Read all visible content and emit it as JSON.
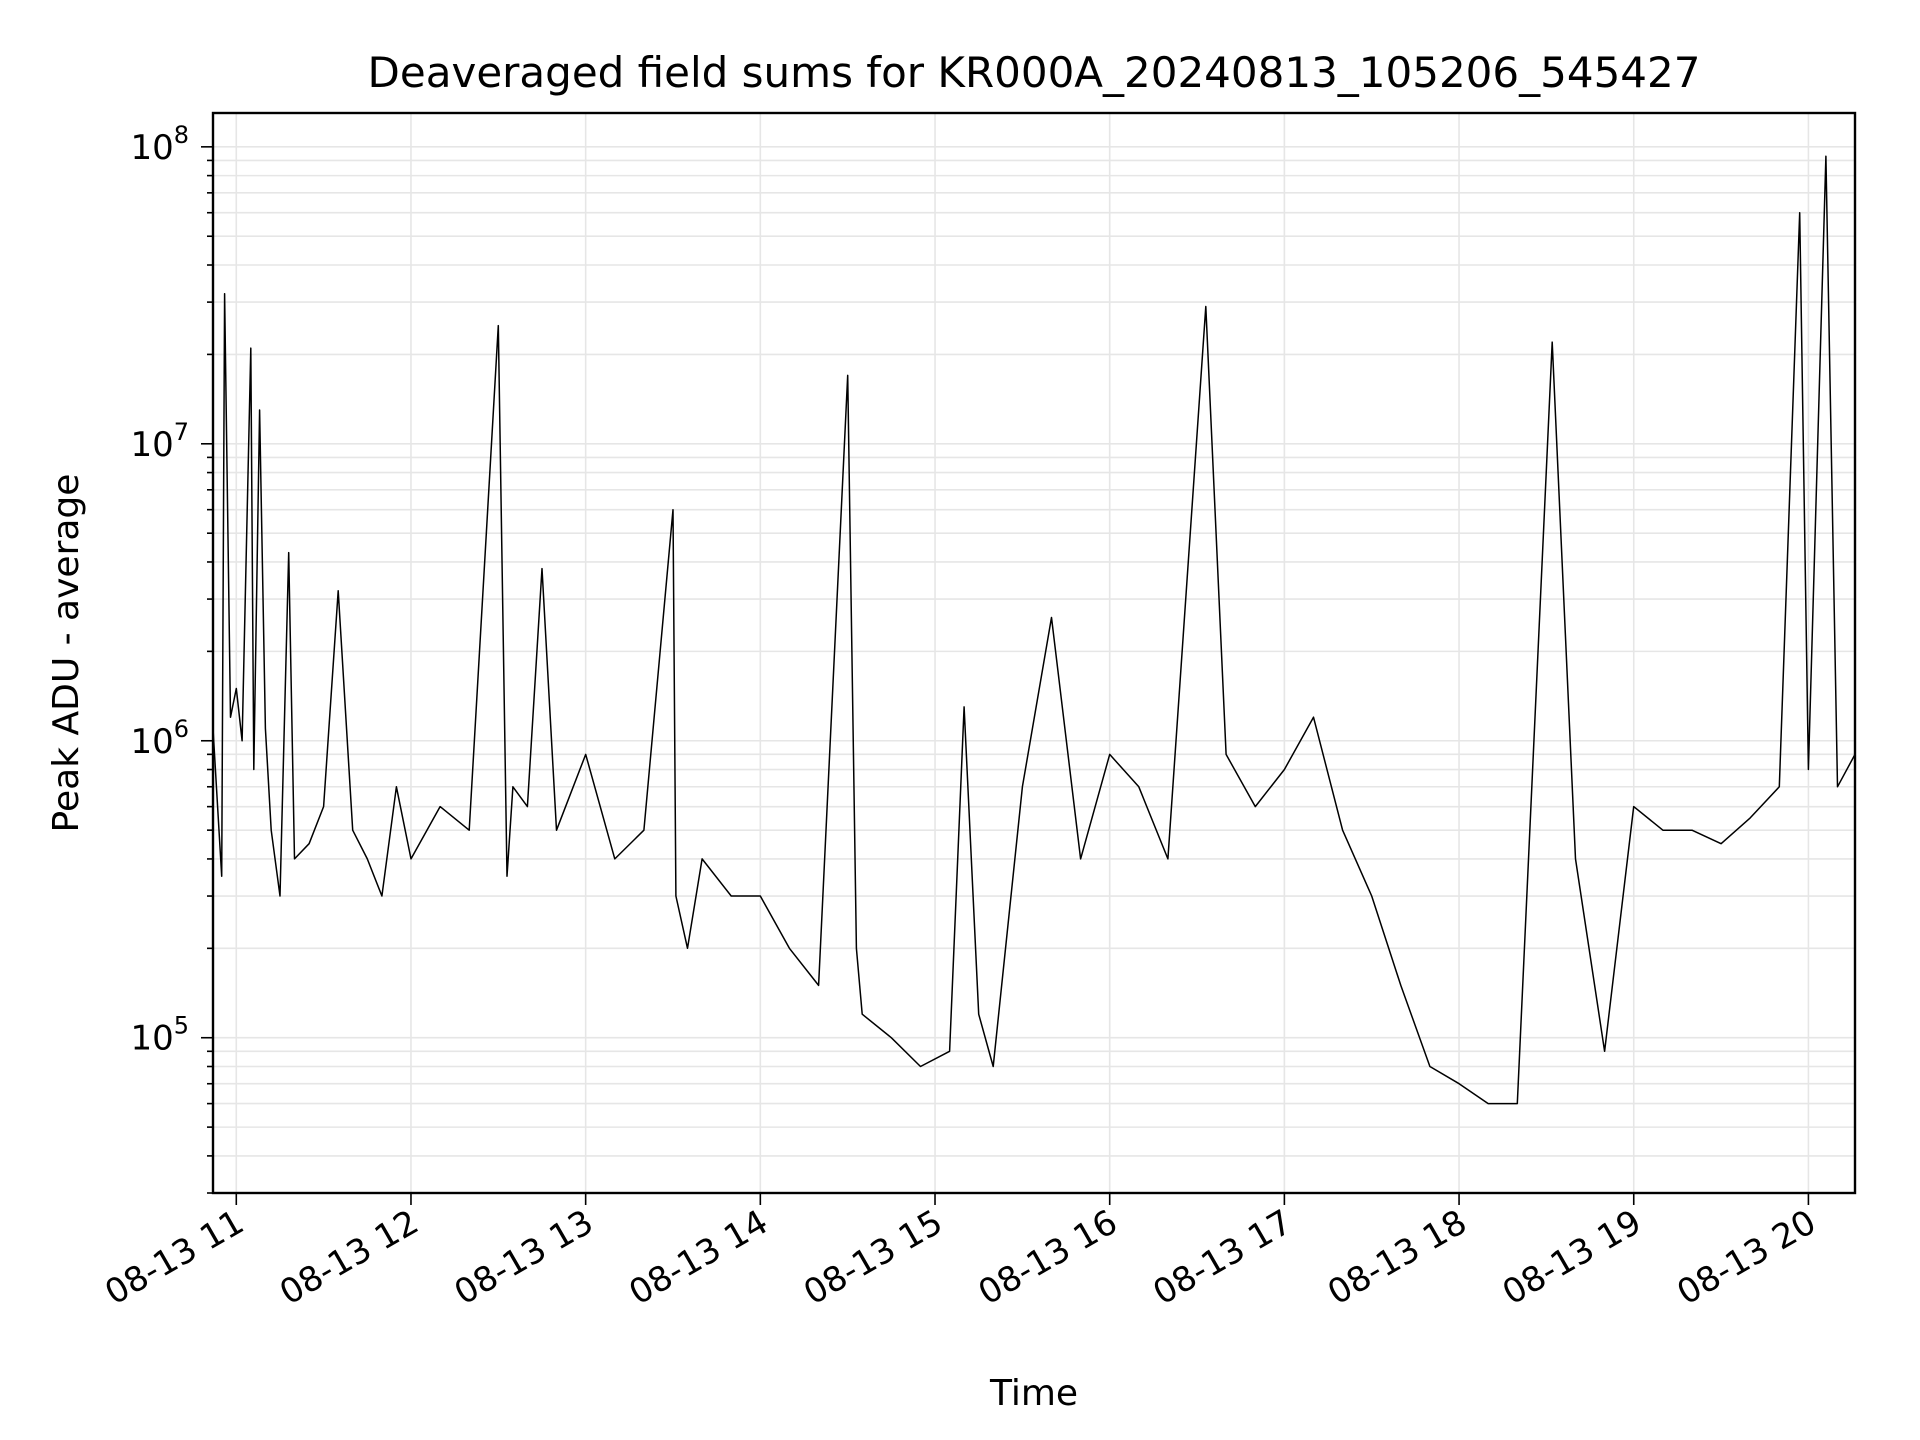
{
  "chart_data": {
    "type": "line",
    "title": "Deaveraged field sums for KR000A_20240813_105206_545427",
    "xlabel": "Time",
    "ylabel": "Peak ADU - average",
    "yscale": "log",
    "ylim": [
      30000,
      130000000
    ],
    "xlim": [
      "08-13 10:52",
      "08-13 20:16"
    ],
    "grid": true,
    "x_tick_labels": [
      "08-13 11",
      "08-13 12",
      "08-13 13",
      "08-13 14",
      "08-13 15",
      "08-13 16",
      "08-13 17",
      "08-13 18",
      "08-13 19",
      "08-13 20"
    ],
    "y_tick_labels": [
      {
        "base": "10",
        "exp": "5",
        "value": 100000
      },
      {
        "base": "10",
        "exp": "6",
        "value": 1000000
      },
      {
        "base": "10",
        "exp": "7",
        "value": 10000000
      },
      {
        "base": "10",
        "exp": "8",
        "value": 100000000
      }
    ],
    "series": [
      {
        "color": "#000000",
        "x": [
          "08-13 10:52",
          "08-13 10:55",
          "08-13 10:56",
          "08-13 10:58",
          "08-13 11:00",
          "08-13 11:02",
          "08-13 11:05",
          "08-13 11:06",
          "08-13 11:08",
          "08-13 11:10",
          "08-13 11:12",
          "08-13 11:15",
          "08-13 11:18",
          "08-13 11:20",
          "08-13 11:25",
          "08-13 11:30",
          "08-13 11:35",
          "08-13 11:40",
          "08-13 11:45",
          "08-13 11:50",
          "08-13 11:55",
          "08-13 12:00",
          "08-13 12:10",
          "08-13 12:20",
          "08-13 12:30",
          "08-13 12:33",
          "08-13 12:35",
          "08-13 12:40",
          "08-13 12:45",
          "08-13 12:50",
          "08-13 13:00",
          "08-13 13:10",
          "08-13 13:20",
          "08-13 13:30",
          "08-13 13:31",
          "08-13 13:35",
          "08-13 13:40",
          "08-13 13:50",
          "08-13 14:00",
          "08-13 14:10",
          "08-13 14:20",
          "08-13 14:30",
          "08-13 14:33",
          "08-13 14:35",
          "08-13 14:45",
          "08-13 14:55",
          "08-13 15:05",
          "08-13 15:10",
          "08-13 15:15",
          "08-13 15:20",
          "08-13 15:30",
          "08-13 15:40",
          "08-13 15:50",
          "08-13 16:00",
          "08-13 16:10",
          "08-13 16:20",
          "08-13 16:33",
          "08-13 16:40",
          "08-13 16:50",
          "08-13 17:00",
          "08-13 17:10",
          "08-13 17:20",
          "08-13 17:30",
          "08-13 17:40",
          "08-13 17:50",
          "08-13 18:00",
          "08-13 18:10",
          "08-13 18:20",
          "08-13 18:32",
          "08-13 18:40",
          "08-13 18:50",
          "08-13 19:00",
          "08-13 19:10",
          "08-13 19:20",
          "08-13 19:30",
          "08-13 19:40",
          "08-13 19:50",
          "08-13 19:57",
          "08-13 20:00",
          "08-13 20:06",
          "08-13 20:10",
          "08-13 20:16"
        ],
        "y": [
          1100000,
          350000,
          32000000,
          1200000,
          1500000,
          1000000,
          21000000,
          800000,
          13000000,
          1100000,
          500000,
          300000,
          4300000,
          400000,
          450000,
          600000,
          3200000,
          500000,
          400000,
          300000,
          700000,
          400000,
          600000,
          500000,
          25000000,
          350000,
          700000,
          600000,
          3800000,
          500000,
          900000,
          400000,
          500000,
          6000000,
          300000,
          200000,
          400000,
          300000,
          300000,
          200000,
          150000,
          17000000,
          200000,
          120000,
          100000,
          80000,
          90000,
          1300000,
          120000,
          80000,
          700000,
          2600000,
          400000,
          900000,
          700000,
          400000,
          29000000,
          900000,
          600000,
          800000,
          1200000,
          500000,
          300000,
          150000,
          80000,
          70000,
          60000,
          60000,
          22000000,
          400000,
          90000,
          600000,
          500000,
          500000,
          450000,
          550000,
          700000,
          60000000,
          800000,
          93000000,
          700000,
          900000
        ]
      }
    ]
  }
}
